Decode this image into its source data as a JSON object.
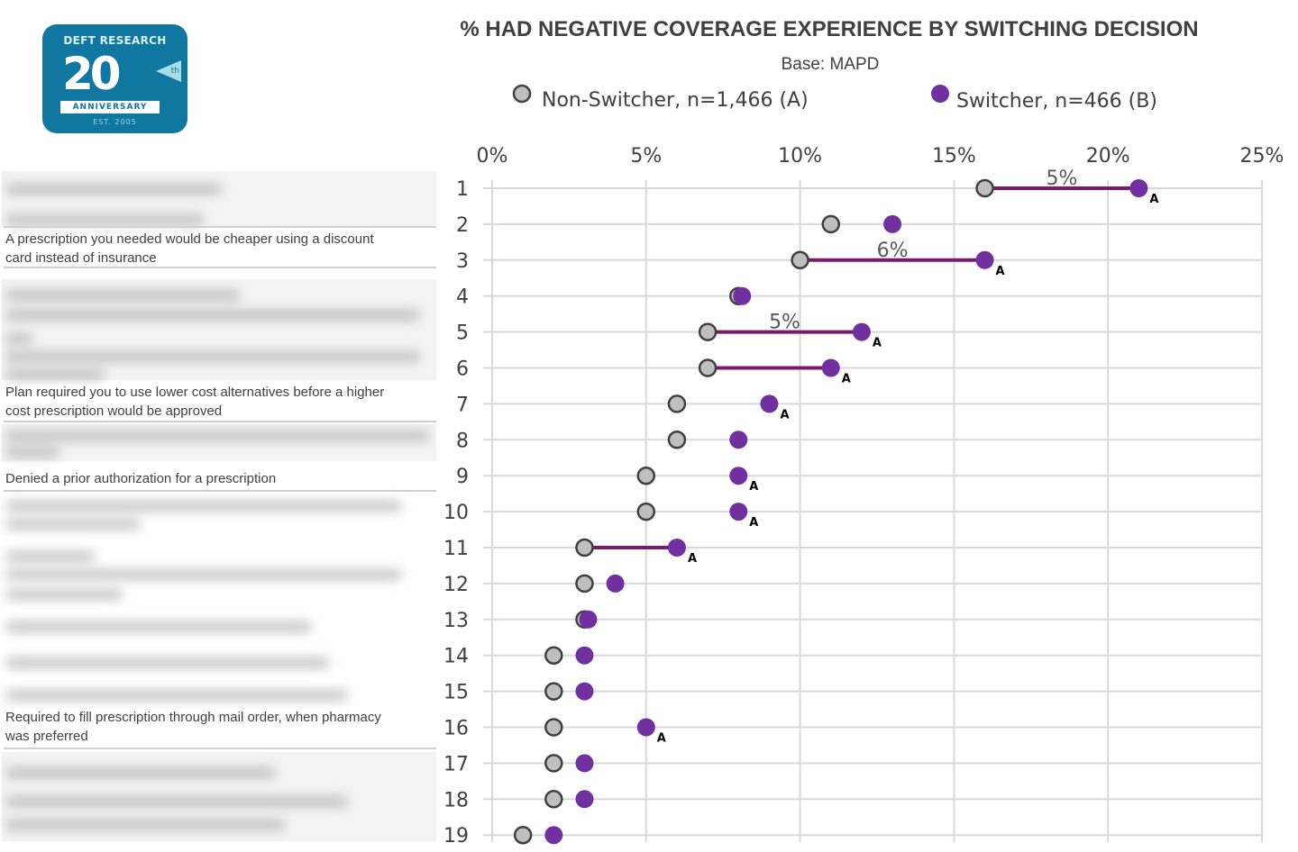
{
  "logo": {
    "text_top": "DEFT RESEARCH",
    "number": "20",
    "suffix": "th",
    "band": "ANNIVERSARY",
    "est": "EST. 2005",
    "color": "#0f77a0"
  },
  "left_labels": [
    {
      "row": 3,
      "text_1": "A prescription you needed would be cheaper using a discount",
      "text_2": "card instead of insurance"
    },
    {
      "row": 7,
      "text_1": "Plan required you to use lower cost alternatives before a higher",
      "text_2": "cost prescription would be approved"
    },
    {
      "row": 9,
      "text_1": "Denied a prior authorization for a prescription",
      "text_2": ""
    },
    {
      "row": 16,
      "text_1": "Required to fill prescription through mail order, when pharmacy",
      "text_2": "was preferred"
    }
  ],
  "chart_data": {
    "type": "dumbbell",
    "title": "% HAD NEGATIVE COVERAGE EXPERIENCE BY SWITCHING DECISION",
    "subtitle": "Base: MAPD",
    "legend_position": "top",
    "xlim": [
      0,
      25
    ],
    "x_ticks": [
      "0%",
      "5%",
      "10%",
      "15%",
      "20%",
      "25%"
    ],
    "grid": true,
    "categories": [
      "1",
      "2",
      "3",
      "4",
      "5",
      "6",
      "7",
      "8",
      "9",
      "10",
      "11",
      "12",
      "13",
      "14",
      "15",
      "16",
      "17",
      "18",
      "19"
    ],
    "series": [
      {
        "name": "Non-Switcher, n=1,466 (A)",
        "color": "#bfbfbf",
        "values": [
          16,
          11,
          10,
          8,
          7,
          7,
          6,
          6,
          5,
          5,
          3,
          3,
          3,
          2,
          2,
          2,
          2,
          2,
          1
        ]
      },
      {
        "name": "Switcher, n=466 (B)",
        "color": "#7030a0",
        "values": [
          21,
          13,
          16,
          8,
          12,
          11,
          9,
          8,
          8,
          8,
          6,
          4,
          3,
          3,
          3,
          5,
          3,
          3,
          2
        ]
      }
    ],
    "connector_color": "#7b1a6a",
    "connectors": [
      {
        "row": 1,
        "label": "5%"
      },
      {
        "row": 3,
        "label": "6%"
      },
      {
        "row": 5,
        "label": "5%"
      },
      {
        "row": 6,
        "label": ""
      },
      {
        "row": 11,
        "label": ""
      }
    ],
    "significance_marker": "A",
    "significant_rows": [
      1,
      3,
      5,
      6,
      7,
      9,
      10,
      11,
      16
    ]
  }
}
